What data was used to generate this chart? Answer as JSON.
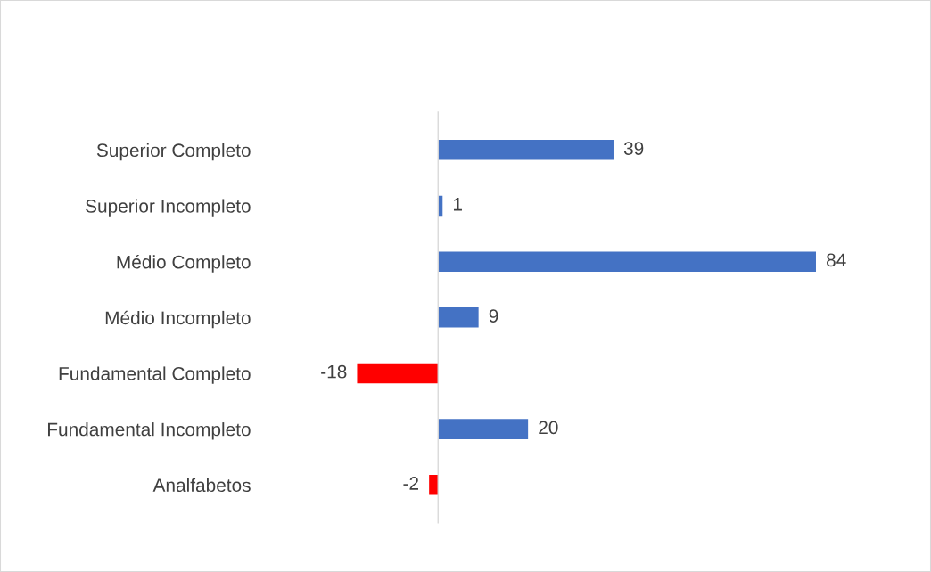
{
  "chart_data": {
    "type": "bar",
    "orientation": "horizontal",
    "categories": [
      "Superior Completo",
      "Superior Incompleto",
      "Médio Completo",
      "Médio Incompleto",
      "Fundamental Completo",
      "Fundamental Incompleto",
      "Analfabetos"
    ],
    "values": [
      39,
      1,
      84,
      9,
      -18,
      20,
      -2
    ],
    "colors": [
      "#4472c4",
      "#4472c4",
      "#4472c4",
      "#4472c4",
      "#ff0000",
      "#4472c4",
      "#ff0000"
    ],
    "data_labels": true,
    "tick_labels": "y",
    "grid": false,
    "legend": false
  }
}
